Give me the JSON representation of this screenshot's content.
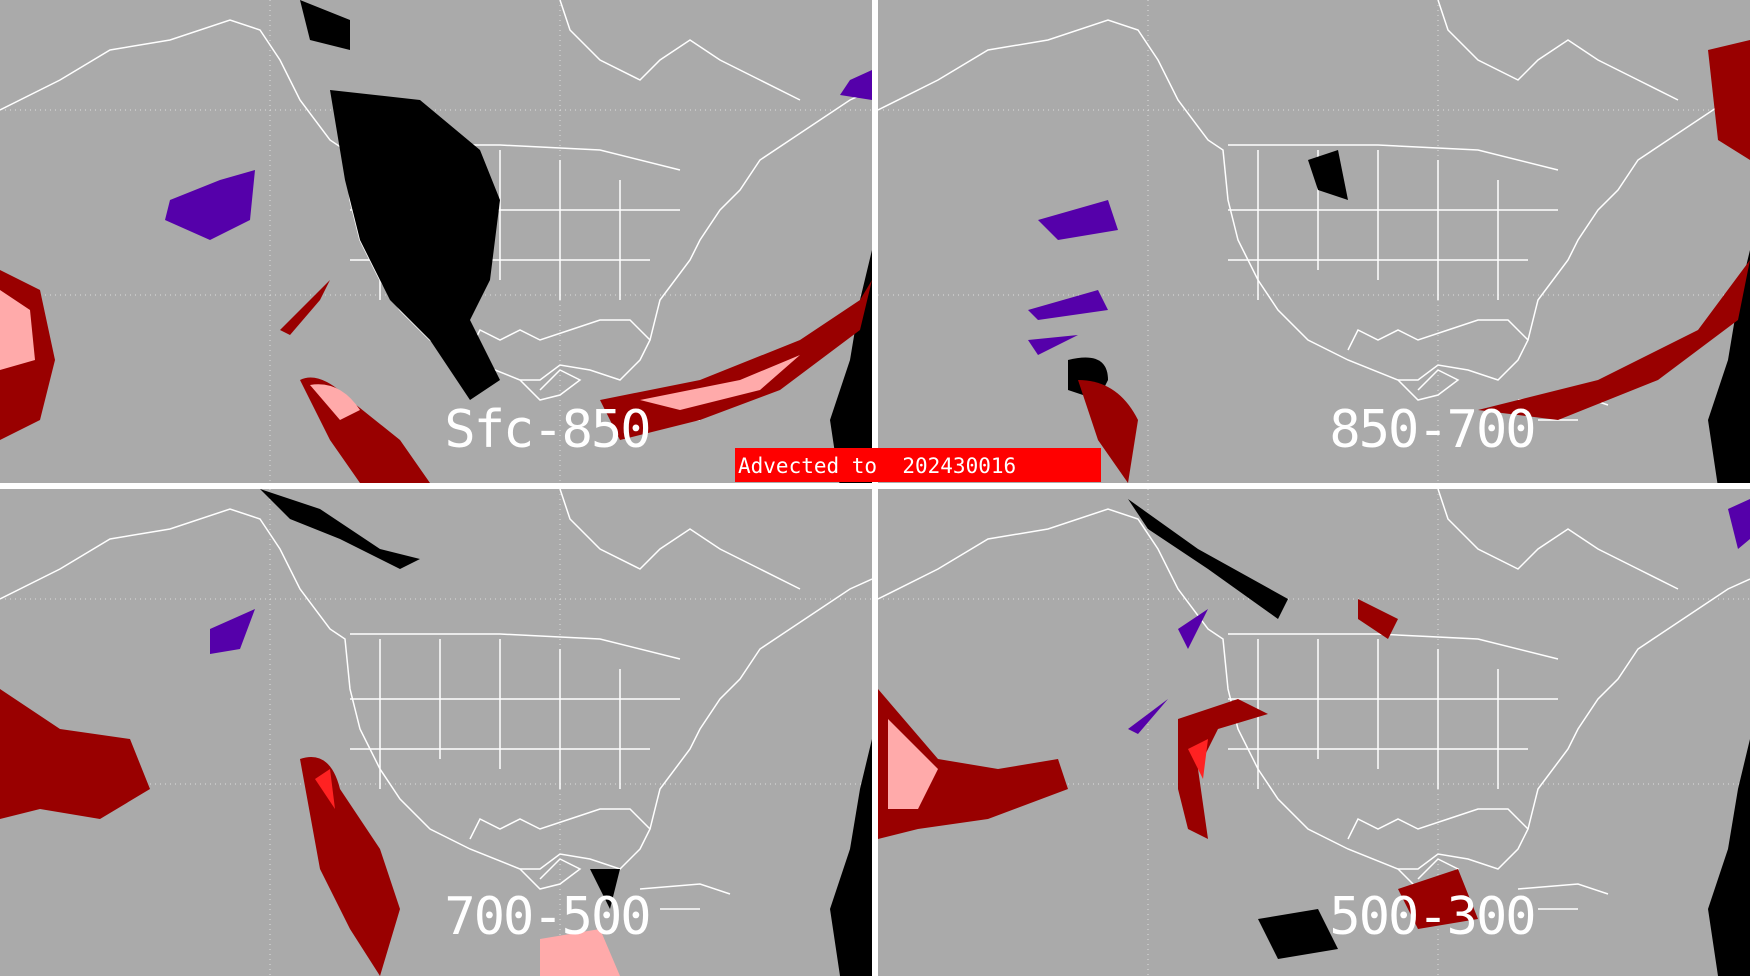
{
  "panels": [
    {
      "label": "Sfc-850"
    },
    {
      "label": "850-700"
    },
    {
      "label": "700-500"
    },
    {
      "label": "500-300"
    }
  ],
  "banner": {
    "text": "Advected to  202430016",
    "color": "#ff0000"
  },
  "colors": {
    "background": "#aaaaaa",
    "coastline": "#ffffff",
    "black_category": "#000000",
    "dark_red": "#990000",
    "pink": "#ffaaaa",
    "purple": "#5500aa",
    "divider": "#ffffff"
  }
}
